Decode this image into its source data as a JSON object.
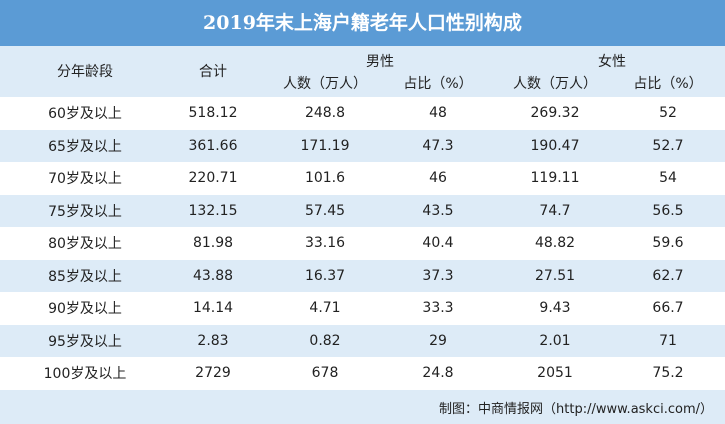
{
  "title": "2019年末上海户籍老年人口性别构成",
  "header": {
    "age": "分年龄段",
    "total": "合计",
    "male": "男性",
    "female": "女性",
    "male_count": "人数（万人）",
    "male_ratio": "占比（%）",
    "female_count": "人数（万人）",
    "female_ratio": "占比（%）"
  },
  "table": {
    "rows": [
      [
        "60岁及以上",
        518.12,
        248.8,
        48,
        269.32,
        52
      ],
      [
        "65岁及以上",
        361.66,
        171.19,
        47.3,
        190.47,
        52.7
      ],
      [
        "70岁及以上",
        220.71,
        101.6,
        46,
        119.11,
        54
      ],
      [
        "75岁及以上",
        132.15,
        57.45,
        43.5,
        74.7,
        56.5
      ],
      [
        "80岁及以上",
        81.98,
        33.16,
        40.4,
        48.82,
        59.6
      ],
      [
        "85岁及以上",
        43.88,
        16.37,
        37.3,
        27.51,
        62.7
      ],
      [
        "90岁及以上",
        14.14,
        4.71,
        33.3,
        9.43,
        66.7
      ],
      [
        "95岁及以上",
        2.83,
        0.82,
        29,
        2.01,
        71
      ],
      [
        "100岁及以上",
        2729,
        678,
        24.8,
        2051,
        75.2
      ]
    ]
  },
  "footer": "制图：中商情报网（http://www.askci.com/）"
}
